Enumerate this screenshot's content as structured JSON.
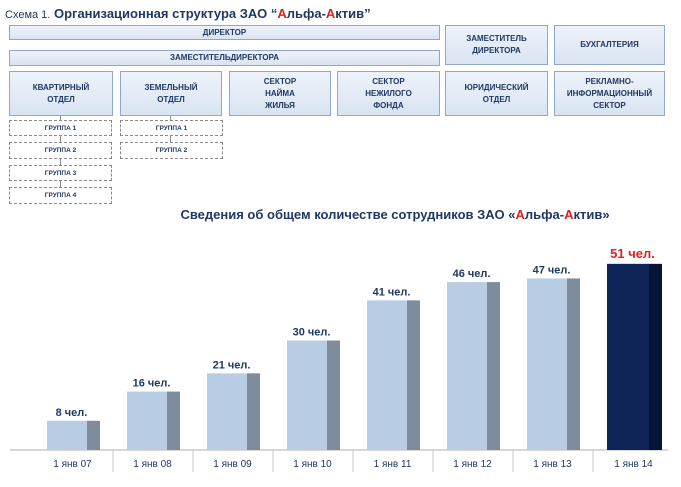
{
  "header": {
    "scheme_label": "Схема 1.",
    "title_pre": "Организационная структура ЗАО “",
    "title_a1": "А",
    "title_mid1": "льфа-",
    "title_a2": "А",
    "title_mid2": "ктив",
    "title_post": "”"
  },
  "org": {
    "director": "ДИРЕКТОР",
    "deputy_director": "ЗАМЕСТИТЕЛЬДИРЕКТОРА",
    "deputy_right": "ЗАМЕСТИТЕЛЬ\nДИРЕКТОРА",
    "accounting": "БУХГАЛТЕРИЯ",
    "departments": [
      "КВАРТИРНЫЙ\nОТДЕЛ",
      "ЗЕМЕЛЬНЫЙ\nОТДЕЛ",
      "СЕКТОР\nНАЙМА\nЖИЛЬЯ",
      "СЕКТОР\nНЕЖИЛОГО\nФОНДА",
      "ЮРИДИЧЕСКИЙ\nОТДЕЛ",
      "РЕКЛАМНО-\nИНФОРМАЦИОННЫЙ\nСЕКТОР"
    ],
    "groups_apartment": [
      "ГРУППА 1",
      "ГРУППА 2",
      "ГРУППА 3",
      "ГРУППА 4"
    ],
    "groups_land": [
      "ГРУППА 1",
      "ГРУППА 2"
    ]
  },
  "chart_title": {
    "pre": "Сведения об общем количестве сотрудников ЗАО «",
    "a1": "А",
    "mid1": "льфа-",
    "a2": "А",
    "mid2": "ктив",
    "post": "»"
  },
  "colors": {
    "bar_front": "#b8cce4",
    "bar_side": "#7f8c9b",
    "highlight_front": "#0f2557",
    "highlight_side": "#061535",
    "label": "#1f3864",
    "highlight_label": "#e02020",
    "accent_red": "#e02020"
  },
  "chart_data": {
    "type": "bar",
    "title": "Сведения об общем количестве сотрудников ЗАО «Альфа-Актив»",
    "categories": [
      "1 янв 07",
      "1 янв 08",
      "1 янв 09",
      "1 янв 10",
      "1 янв 11",
      "1 янв 12",
      "1 янв 13",
      "1 янв 14"
    ],
    "values": [
      8,
      16,
      21,
      30,
      41,
      46,
      47,
      51
    ],
    "labels": [
      "8 чел.",
      "16 чел.",
      "21 чел.",
      "30 чел.",
      "41 чел.",
      "46 чел.",
      "47 чел.",
      "51 чел."
    ],
    "highlight_index": 7,
    "xlabel": "",
    "ylabel": "",
    "grid": false,
    "legend": "none"
  }
}
